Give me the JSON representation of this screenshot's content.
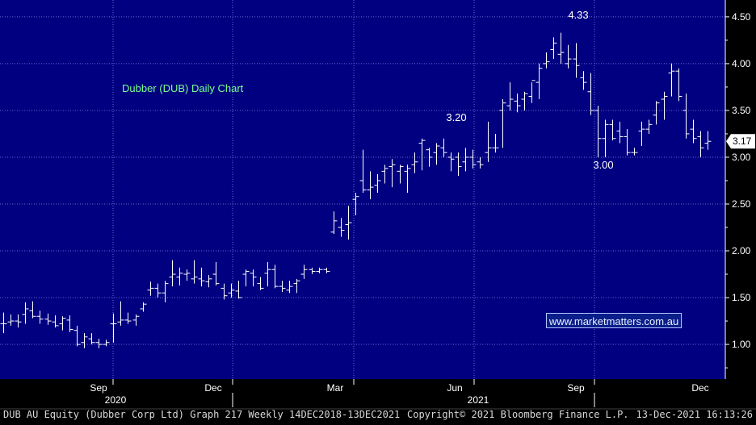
{
  "chart_data": {
    "type": "bar",
    "title": "Dubber (DUB) Daily Chart",
    "y_axis": {
      "ticks": [
        1.0,
        1.5,
        2.0,
        2.5,
        3.0,
        3.5,
        4.0,
        4.5
      ],
      "tick_labels": [
        "1.00",
        "1.50",
        "2.00",
        "2.50",
        "3.00",
        "3.50",
        "4.00",
        "4.50"
      ],
      "range": [
        0.63,
        4.68
      ],
      "side": "right"
    },
    "x_axis": {
      "month_labels": [
        "Sep",
        "Dec",
        "Mar",
        "Jun",
        "Sep",
        "Dec"
      ],
      "year_labels": [
        "2020",
        "2021"
      ]
    },
    "grid": true,
    "last_price": "3.17",
    "annotations": [
      "4.33",
      "3.20",
      "3.00"
    ],
    "series": [
      {
        "bar_type": "weekly OHLC",
        "ohlc": [
          [
            1.22,
            1.34,
            1.12,
            1.22
          ],
          [
            1.24,
            1.32,
            1.2,
            1.25
          ],
          [
            1.25,
            1.32,
            1.18,
            1.24
          ],
          [
            1.32,
            1.45,
            1.22,
            1.38
          ],
          [
            1.36,
            1.46,
            1.28,
            1.3
          ],
          [
            1.3,
            1.36,
            1.22,
            1.27
          ],
          [
            1.27,
            1.33,
            1.21,
            1.25
          ],
          [
            1.24,
            1.31,
            1.18,
            1.2
          ],
          [
            1.22,
            1.3,
            1.15,
            1.28
          ],
          [
            1.26,
            1.31,
            1.13,
            1.16
          ],
          [
            1.15,
            1.2,
            0.98,
            1.0
          ],
          [
            1.02,
            1.12,
            0.96,
            1.08
          ],
          [
            1.06,
            1.12,
            1.0,
            1.02
          ],
          [
            1.02,
            1.06,
            0.96,
            1.0
          ],
          [
            1.0,
            1.05,
            0.98,
            1.02
          ],
          [
            1.22,
            1.33,
            1.02,
            1.22
          ],
          [
            1.24,
            1.46,
            1.2,
            1.26
          ],
          [
            1.26,
            1.34,
            1.22,
            1.25
          ],
          [
            1.26,
            1.32,
            1.2,
            1.3
          ],
          [
            1.38,
            1.45,
            1.35,
            1.43
          ],
          [
            1.58,
            1.67,
            1.52,
            1.6
          ],
          [
            1.6,
            1.65,
            1.5,
            1.55
          ],
          [
            1.55,
            1.68,
            1.45,
            1.65
          ],
          [
            1.72,
            1.9,
            1.62,
            1.75
          ],
          [
            1.72,
            1.82,
            1.63,
            1.76
          ],
          [
            1.75,
            1.8,
            1.68,
            1.76
          ],
          [
            1.7,
            1.9,
            1.65,
            1.72
          ],
          [
            1.7,
            1.82,
            1.62,
            1.68
          ],
          [
            1.67,
            1.74,
            1.61,
            1.7
          ],
          [
            1.75,
            1.88,
            1.63,
            1.65
          ],
          [
            1.6,
            1.65,
            1.48,
            1.52
          ],
          [
            1.55,
            1.65,
            1.5,
            1.58
          ],
          [
            1.57,
            1.68,
            1.49,
            1.5
          ],
          [
            1.75,
            1.8,
            1.62,
            1.78
          ],
          [
            1.76,
            1.8,
            1.62,
            1.72
          ],
          [
            1.65,
            1.72,
            1.58,
            1.6
          ],
          [
            1.76,
            1.88,
            1.62,
            1.8
          ],
          [
            1.8,
            1.85,
            1.6,
            1.62
          ],
          [
            1.62,
            1.68,
            1.56,
            1.6
          ],
          [
            1.58,
            1.68,
            1.55,
            1.62
          ],
          [
            1.65,
            1.7,
            1.55,
            1.68
          ],
          [
            1.75,
            1.85,
            1.7,
            1.8
          ],
          [
            1.8,
            1.82,
            1.75,
            1.78
          ],
          [
            1.78,
            1.82,
            1.76,
            1.8
          ],
          [
            1.8,
            1.82,
            1.76,
            1.78
          ],
          [
            2.2,
            2.42,
            2.18,
            2.32
          ],
          [
            2.25,
            2.35,
            2.15,
            2.22
          ],
          [
            2.28,
            2.48,
            2.12,
            2.3
          ],
          [
            2.55,
            2.62,
            2.38,
            2.58
          ],
          [
            2.75,
            3.08,
            2.62,
            2.65
          ],
          [
            2.65,
            2.85,
            2.55,
            2.68
          ],
          [
            2.7,
            2.82,
            2.62,
            2.75
          ],
          [
            2.85,
            2.92,
            2.72,
            2.88
          ],
          [
            2.9,
            2.98,
            2.68,
            2.92
          ],
          [
            2.85,
            2.92,
            2.72,
            2.9
          ],
          [
            2.85,
            2.92,
            2.62,
            2.88
          ],
          [
            2.92,
            3.05,
            2.83,
            2.95
          ],
          [
            3.15,
            3.2,
            2.86,
            3.18
          ],
          [
            3.08,
            3.1,
            2.9,
            3.0
          ],
          [
            3.05,
            3.15,
            2.92,
            3.12
          ],
          [
            3.1,
            3.2,
            3.0,
            3.05
          ],
          [
            3.0,
            3.05,
            2.85,
            2.98
          ],
          [
            3.0,
            3.05,
            2.8,
            2.9
          ],
          [
            2.95,
            3.1,
            2.85,
            3.0
          ],
          [
            3.0,
            3.08,
            2.88,
            2.92
          ],
          [
            2.95,
            3.0,
            2.88,
            2.92
          ],
          [
            3.05,
            3.38,
            2.95,
            3.1
          ],
          [
            3.1,
            3.25,
            3.05,
            3.1
          ],
          [
            3.5,
            3.62,
            3.1,
            3.58
          ],
          [
            3.55,
            3.8,
            3.5,
            3.62
          ],
          [
            3.6,
            3.68,
            3.48,
            3.55
          ],
          [
            3.62,
            3.7,
            3.5,
            3.68
          ],
          [
            3.65,
            3.8,
            3.58,
            3.82
          ],
          [
            3.8,
            4.0,
            3.62,
            3.95
          ],
          [
            4.0,
            4.12,
            3.95,
            4.02
          ],
          [
            4.15,
            4.28,
            4.05,
            4.22
          ],
          [
            4.1,
            4.33,
            4.0,
            4.12
          ],
          [
            4.0,
            4.2,
            3.95,
            4.05
          ],
          [
            4.05,
            4.22,
            3.85,
            3.98
          ],
          [
            3.85,
            3.92,
            3.72,
            3.8
          ],
          [
            3.7,
            3.9,
            3.45,
            3.5
          ],
          [
            3.5,
            3.55,
            3.0,
            3.2
          ],
          [
            3.2,
            3.4,
            3.0,
            3.35
          ],
          [
            3.35,
            3.4,
            3.18,
            3.2
          ],
          [
            3.28,
            3.38,
            3.15,
            3.22
          ],
          [
            3.22,
            3.3,
            3.02,
            3.05
          ],
          [
            3.05,
            3.1,
            3.02,
            3.05
          ],
          [
            3.28,
            3.38,
            3.12,
            3.3
          ],
          [
            3.3,
            3.4,
            3.25,
            3.35
          ],
          [
            3.45,
            3.6,
            3.35,
            3.58
          ],
          [
            3.62,
            3.7,
            3.4,
            3.65
          ],
          [
            3.9,
            4.0,
            3.65,
            3.92
          ],
          [
            3.92,
            3.95,
            3.6,
            3.65
          ],
          [
            3.5,
            3.68,
            3.2,
            3.25
          ],
          [
            3.3,
            3.4,
            3.15,
            3.2
          ],
          [
            3.22,
            3.28,
            3.0,
            3.1
          ],
          [
            3.15,
            3.28,
            3.08,
            3.17
          ]
        ]
      }
    ]
  },
  "link_box": {
    "text": "www.marketmatters.com.au"
  },
  "footer": {
    "left": "DUB AU Equity (Dubber Corp Ltd) Graph 217  Weekly 14DEC2018-13DEC2021",
    "center": "Copyright© 2021 Bloomberg Finance L.P.",
    "right": "13-Dec-2021 16:13:26"
  },
  "colors": {
    "plot_background": "#000080",
    "outer_background": "#000000",
    "bars": "#ffffff",
    "grid": "#6a6ad8",
    "title_text": "#7cff90",
    "axis_text": "#ffffff",
    "link_box_background": "#0b1e8a"
  }
}
